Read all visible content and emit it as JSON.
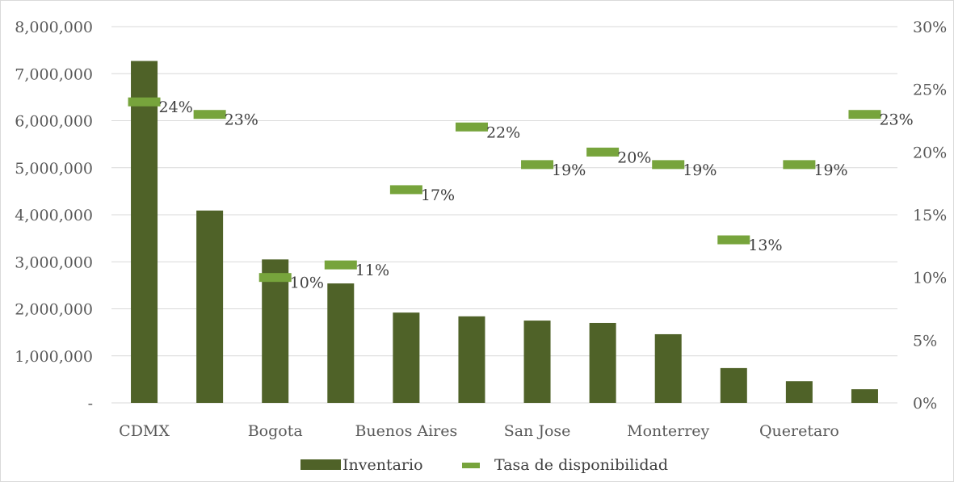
{
  "chart_data": {
    "type": "bar",
    "combo": "bar + marker-line on secondary axis",
    "title": "",
    "categories": [
      "CDMX",
      "",
      "Bogota",
      "",
      "Buenos Aires",
      "",
      "San Jose",
      "",
      "Monterrey",
      "",
      "Queretaro",
      ""
    ],
    "series": [
      {
        "name": "Inventario",
        "type": "bar",
        "axis": "primary",
        "color": "#4f6228",
        "values": [
          7270000,
          4090000,
          3050000,
          2540000,
          1920000,
          1840000,
          1750000,
          1700000,
          1460000,
          740000,
          460000,
          290000
        ]
      },
      {
        "name": "Tasa de disponibilidad",
        "type": "line-marker",
        "axis": "secondary",
        "color": "#77a43c",
        "values": [
          0.24,
          0.23,
          0.1,
          0.11,
          0.17,
          0.22,
          0.19,
          0.2,
          0.19,
          0.13,
          0.19,
          0.23
        ],
        "data_labels": [
          "24%",
          "23%",
          "10%",
          "11%",
          "17%",
          "22%",
          "19%",
          "20%",
          "19%",
          "13%",
          "19%",
          "23%"
        ]
      }
    ],
    "primary_axis": {
      "ylim": [
        0,
        8000000
      ],
      "ticks": [
        0,
        1000000,
        2000000,
        3000000,
        4000000,
        5000000,
        6000000,
        7000000,
        8000000
      ],
      "tick_labels": [
        "-",
        "1,000,000",
        "2,000,000",
        "3,000,000",
        "4,000,000",
        "5,000,000",
        "6,000,000",
        "7,000,000",
        "8,000,000"
      ]
    },
    "secondary_axis": {
      "ylim": [
        0,
        0.3
      ],
      "ticks": [
        0,
        0.05,
        0.1,
        0.15,
        0.2,
        0.25,
        0.3
      ],
      "tick_labels": [
        "0%",
        "5%",
        "10%",
        "15%",
        "20%",
        "25%",
        "30%"
      ]
    },
    "grid": true,
    "legend": {
      "position": "bottom",
      "items": [
        "Inventario",
        "Tasa de disponibilidad"
      ]
    }
  }
}
